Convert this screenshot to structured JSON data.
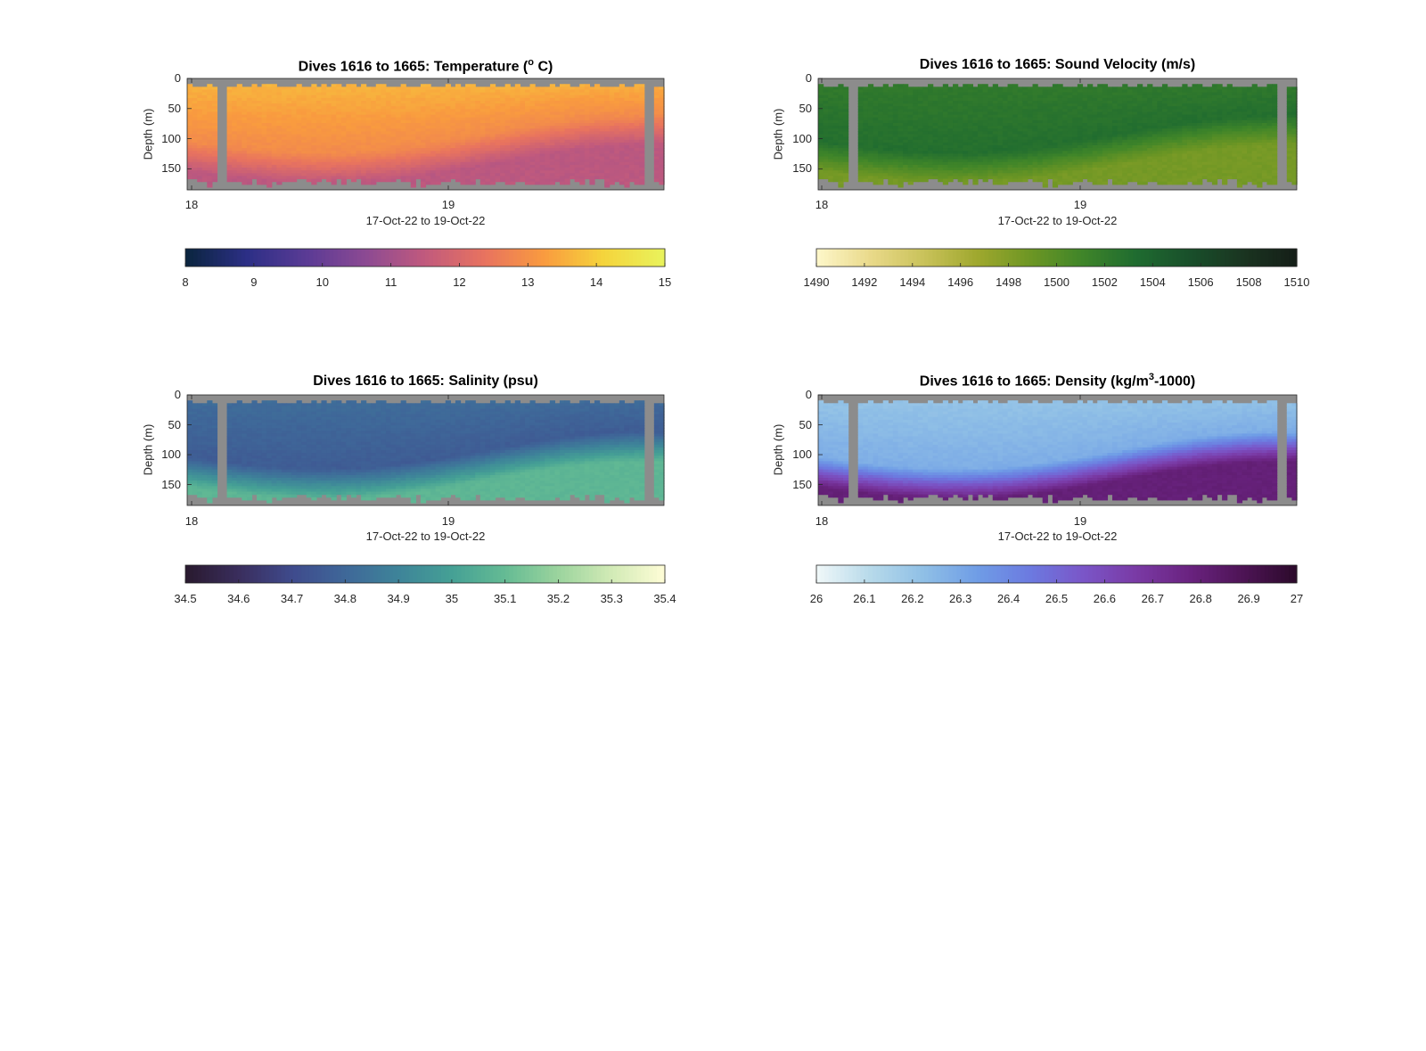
{
  "chart_data": [
    {
      "type": "heatmap",
      "title": "Dives 1616 to 1665: Temperature (",
      "title_sup": "o",
      "title_tail": " C)",
      "ylabel": "Depth (m)",
      "xlabel": "17-Oct-22 to 19-Oct-22",
      "xticks": [
        "18",
        "19"
      ],
      "yticks": [
        "0",
        "50",
        "100",
        "150"
      ],
      "ylim": [
        0,
        185
      ],
      "colorbar": {
        "min": 8,
        "max": 15,
        "ticks": [
          "8",
          "9",
          "10",
          "11",
          "12",
          "13",
          "14",
          "15"
        ],
        "colors": [
          "#0b2540",
          "#2c2f86",
          "#5a3b95",
          "#8c4a93",
          "#c15a7d",
          "#e8735f",
          "#f99b3f",
          "#f5d43c",
          "#e9f25b"
        ]
      },
      "profile": {
        "surface": 13.7,
        "mid": 12.9,
        "deep": 11.4
      }
    },
    {
      "type": "heatmap",
      "title": "Dives 1616 to 1665: Sound Velocity (m/s)",
      "ylabel": "Depth (m)",
      "xlabel": "17-Oct-22 to 19-Oct-22",
      "xticks": [
        "18",
        "19"
      ],
      "yticks": [
        "0",
        "50",
        "100",
        "150"
      ],
      "ylim": [
        0,
        185
      ],
      "colorbar": {
        "min": 1490,
        "max": 1510,
        "ticks": [
          "1490",
          "1492",
          "1494",
          "1496",
          "1498",
          "1500",
          "1502",
          "1504",
          "1506",
          "1508",
          "1510"
        ],
        "colors": [
          "#fdf6c8",
          "#e9d989",
          "#c9c25a",
          "#9fa82e",
          "#6d9624",
          "#3f8529",
          "#1f6b30",
          "#19502b",
          "#1a3521",
          "#151f18"
        ]
      },
      "profile": {
        "surface": 1502.0,
        "mid": 1503.0,
        "deep": 1498.5
      }
    },
    {
      "type": "heatmap",
      "title": "Dives 1616 to 1665: Salinity (psu)",
      "ylabel": "Depth (m)",
      "xlabel": "17-Oct-22 to 19-Oct-22",
      "xticks": [
        "18",
        "19"
      ],
      "yticks": [
        "0",
        "50",
        "100",
        "150"
      ],
      "ylim": [
        0,
        185
      ],
      "colorbar": {
        "min": 34.5,
        "max": 35.4,
        "ticks": [
          "34.5",
          "34.6",
          "34.7",
          "34.8",
          "34.9",
          "35",
          "35.1",
          "35.2",
          "35.3",
          "35.4"
        ],
        "colors": [
          "#2a1a30",
          "#3a2e5e",
          "#3f4b8d",
          "#3f6899",
          "#3e8499",
          "#45a095",
          "#64bb94",
          "#9ad39d",
          "#d0eab5",
          "#fdfcd5"
        ]
      },
      "profile": {
        "surface": 34.82,
        "mid": 34.76,
        "deep": 35.08
      }
    },
    {
      "type": "heatmap",
      "title": "Dives 1616 to 1665: Density (kg/m",
      "title_sup": "3",
      "title_tail": "-1000)",
      "ylabel": "Depth (m)",
      "xlabel": "17-Oct-22 to 19-Oct-22",
      "xticks": [
        "18",
        "19"
      ],
      "yticks": [
        "0",
        "50",
        "100",
        "150"
      ],
      "ylim": [
        0,
        185
      ],
      "colorbar": {
        "min": 26,
        "max": 27,
        "ticks": [
          "26",
          "26.1",
          "26.2",
          "26.3",
          "26.4",
          "26.5",
          "26.6",
          "26.7",
          "26.8",
          "26.9",
          "27"
        ],
        "colors": [
          "#eef7f8",
          "#b6d9ea",
          "#8fbfe6",
          "#6f9de6",
          "#6c7ae0",
          "#7a56c8",
          "#7a3aa5",
          "#6a2380",
          "#4e1456",
          "#2d0a2c"
        ]
      },
      "profile": {
        "surface": 26.2,
        "mid": 26.28,
        "deep": 26.8
      }
    }
  ]
}
